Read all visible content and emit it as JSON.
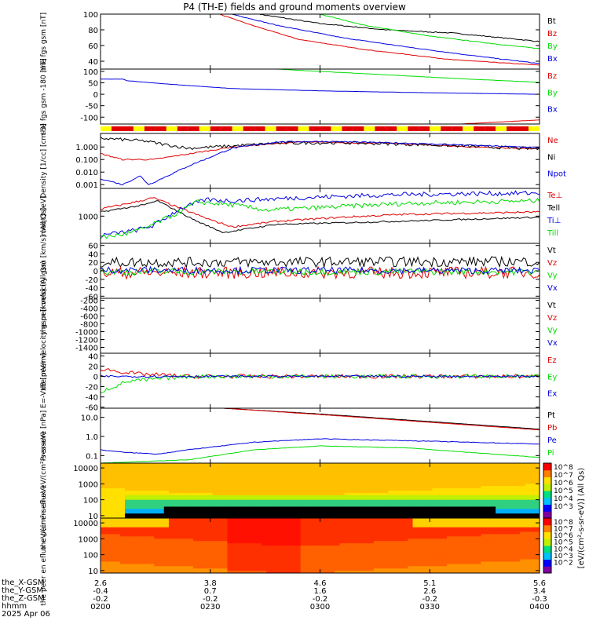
{
  "title": "P4 (TH-E) fields and ground moments overview",
  "colors": {
    "black": "#000000",
    "red": "#e00000",
    "green": "#00dd00",
    "blue": "#0000e0",
    "yellow": "#ffff00"
  },
  "x_axis": {
    "ticks": [
      "0200",
      "0230",
      "0300",
      "0330",
      "0400"
    ],
    "rows": [
      {
        "label": "the_X-GSM",
        "values": [
          "2.6",
          "3.8",
          "4.6",
          "5.1",
          "5.6"
        ]
      },
      {
        "label": "the_Y-GSM",
        "values": [
          "-0.4",
          "0.7",
          "1.6",
          "2.6",
          "3.4"
        ]
      },
      {
        "label": "the_Z-GSM",
        "values": [
          "-0.2",
          "-0.2",
          "-0.2",
          "-0.2",
          "-0.3"
        ]
      },
      {
        "label": "hhmm",
        "values": [
          "0200",
          "0230",
          "0300",
          "0330",
          "0400"
        ]
      }
    ],
    "date": "2025 Apr 06"
  },
  "colorbar_label": "[eV/(cm²-s-sr-eV)] (All Qs)",
  "chart_data": [
    {
      "type": "line",
      "ylabel": "the fgs gsm [nT]",
      "ylim": [
        30,
        100
      ],
      "ticks": [
        "100",
        "80",
        "60",
        "40"
      ],
      "tick_values": [
        100,
        80,
        60,
        40
      ],
      "series": [
        {
          "name": "Bt",
          "color": "#000000",
          "points": [
            [
              0.36,
              100
            ],
            [
              0.5,
              88
            ],
            [
              0.65,
              80
            ],
            [
              0.8,
              76
            ],
            [
              0.95,
              68
            ],
            [
              1.0,
              65
            ]
          ],
          "noise": 0.6
        },
        {
          "name": "Bz",
          "color": "#e00000",
          "points": [
            [
              0.27,
              100
            ],
            [
              0.35,
              85
            ],
            [
              0.45,
              68
            ],
            [
              0.6,
              55
            ],
            [
              0.8,
              42
            ],
            [
              1.0,
              35
            ]
          ],
          "noise": 0.3
        },
        {
          "name": "By",
          "color": "#00dd00",
          "points": [
            [
              0.5,
              100
            ],
            [
              0.6,
              86
            ],
            [
              0.75,
              72
            ],
            [
              0.9,
              62
            ],
            [
              1.0,
              56
            ]
          ],
          "noise": 0.4
        },
        {
          "name": "Bx",
          "color": "#0000e0",
          "points": [
            [
              0.3,
              100
            ],
            [
              0.4,
              86
            ],
            [
              0.55,
              70
            ],
            [
              0.7,
              58
            ],
            [
              0.85,
              47
            ],
            [
              1.0,
              37
            ]
          ],
          "noise": 0.4
        }
      ]
    },
    {
      "type": "line",
      "ylabel": "the fgs gsm -180 [nT]",
      "ylim": [
        -130,
        110
      ],
      "ticks": [
        "100",
        "50",
        "0",
        "-50",
        "-100"
      ],
      "tick_values": [
        100,
        50,
        0,
        -50,
        -100
      ],
      "series": [
        {
          "name": "Bz",
          "color": "#e00000",
          "points": [
            [
              0.82,
              -130
            ],
            [
              0.9,
              -122
            ],
            [
              1.0,
              -112
            ]
          ],
          "noise": 0.5
        },
        {
          "name": "By",
          "color": "#00dd00",
          "points": [
            [
              0.4,
              110
            ],
            [
              0.6,
              90
            ],
            [
              0.8,
              70
            ],
            [
              1.0,
              52
            ]
          ],
          "noise": 0.5
        },
        {
          "name": "Bx",
          "color": "#0000e0",
          "points": [
            [
              0.0,
              66
            ],
            [
              0.05,
              66
            ],
            [
              0.05,
              108
            ],
            [
              0.055,
              60
            ],
            [
              0.15,
              45
            ],
            [
              0.3,
              25
            ],
            [
              0.5,
              15
            ],
            [
              0.7,
              8
            ],
            [
              1.0,
              0
            ]
          ],
          "noise": 0.3
        }
      ]
    },
    {
      "type": "line",
      "ylabel": "Density [1/cc] [cm-3]",
      "ylim": [
        0.0005,
        12
      ],
      "log": true,
      "ticks": [
        "1.000",
        "0.100",
        "0.010",
        "0.001"
      ],
      "tick_values": [
        1,
        0.1,
        0.01,
        0.001
      ],
      "series": [
        {
          "name": "Ne",
          "color": "#e00000",
          "points": [
            [
              0.0,
              0.3
            ],
            [
              0.05,
              0.1
            ],
            [
              0.12,
              0.1
            ],
            [
              0.3,
              1.0
            ],
            [
              0.45,
              2.5
            ],
            [
              0.65,
              2.0
            ],
            [
              0.85,
              1.0
            ],
            [
              1.0,
              0.7
            ]
          ],
          "noise": 0.1
        },
        {
          "name": "Ni",
          "color": "#000000",
          "points": [
            [
              0.0,
              5
            ],
            [
              0.1,
              3
            ],
            [
              0.15,
              1.5
            ],
            [
              0.2,
              0.8
            ],
            [
              0.3,
              1.2
            ],
            [
              0.4,
              2.0
            ],
            [
              0.55,
              2.2
            ],
            [
              0.75,
              1.5
            ],
            [
              1.0,
              0.7
            ]
          ],
          "noise": 0.25
        },
        {
          "name": "Npot",
          "color": "#0000e0",
          "points": [
            [
              0.0,
              0.003
            ],
            [
              0.05,
              0.001
            ],
            [
              0.09,
              0.005
            ],
            [
              0.11,
              0.001
            ],
            [
              0.2,
              0.03
            ],
            [
              0.3,
              0.8
            ],
            [
              0.4,
              2.5
            ],
            [
              0.5,
              2.8
            ],
            [
              0.7,
              2.0
            ],
            [
              1.0,
              0.9
            ]
          ],
          "noise": 0.1
        }
      ]
    },
    {
      "type": "line",
      "ylabel": "moqt3 [eV]",
      "ylim": [
        70,
        15000
      ],
      "log": true,
      "ticks": [
        "1000"
      ],
      "tick_values": [
        1000
      ],
      "series": [
        {
          "name": "Te⊥",
          "color": "#e00000",
          "points": [
            [
              0.0,
              2000
            ],
            [
              0.08,
              4000
            ],
            [
              0.12,
              6000
            ],
            [
              0.25,
              700
            ],
            [
              0.3,
              350
            ],
            [
              0.4,
              600
            ],
            [
              0.55,
              900
            ],
            [
              0.7,
              1200
            ],
            [
              1.0,
              1500
            ]
          ],
          "noise": 0.08
        },
        {
          "name": "Tell",
          "color": "#000000",
          "points": [
            [
              0.0,
              1500
            ],
            [
              0.1,
              3000
            ],
            [
              0.13,
              4500
            ],
            [
              0.22,
              600
            ],
            [
              0.28,
              200
            ],
            [
              0.4,
              450
            ],
            [
              0.6,
              550
            ],
            [
              0.8,
              700
            ],
            [
              1.0,
              900
            ]
          ],
          "noise": 0.06
        },
        {
          "name": "Ti⊥",
          "color": "#0000e0",
          "points": [
            [
              0.0,
              150
            ],
            [
              0.08,
              250
            ],
            [
              0.12,
              400
            ],
            [
              0.18,
              2000
            ],
            [
              0.24,
              5000
            ],
            [
              0.3,
              4500
            ],
            [
              0.45,
              6000
            ],
            [
              0.65,
              8000
            ],
            [
              0.85,
              9000
            ],
            [
              1.0,
              9500
            ]
          ],
          "noise": 0.2
        },
        {
          "name": "Till",
          "color": "#00dd00",
          "points": [
            [
              0.0,
              120
            ],
            [
              0.06,
              180
            ],
            [
              0.1,
              300
            ],
            [
              0.17,
              1200
            ],
            [
              0.22,
              4000
            ],
            [
              0.3,
              3000
            ],
            [
              0.38,
              1800
            ],
            [
              0.5,
              2300
            ],
            [
              0.7,
              3500
            ],
            [
              1.0,
              4500
            ]
          ],
          "noise": 0.2
        }
      ]
    },
    {
      "type": "line",
      "ylabel": "the peir velocity gsm [km/s] (All Qs)",
      "ylim": [
        -65,
        65
      ],
      "ticks": [
        "60",
        "40",
        "20",
        "0",
        "-20",
        "-40",
        "-60"
      ],
      "tick_values": [
        60,
        40,
        20,
        0,
        -20,
        -40,
        -60
      ],
      "series": [
        {
          "name": "Vt",
          "color": "#000000",
          "points": [
            [
              0.0,
              20
            ],
            [
              1.0,
              22
            ]
          ],
          "noise": 12
        },
        {
          "name": "Vz",
          "color": "#e00000",
          "points": [
            [
              0.0,
              -5
            ],
            [
              1.0,
              -4
            ]
          ],
          "noise": 14
        },
        {
          "name": "Vy",
          "color": "#00dd00",
          "points": [
            [
              0.0,
              -2
            ],
            [
              1.0,
              -2
            ]
          ],
          "noise": 8
        },
        {
          "name": "Vx",
          "color": "#0000e0",
          "points": [
            [
              0.0,
              2
            ],
            [
              1.0,
              0
            ]
          ],
          "noise": 8
        }
      ]
    },
    {
      "type": "line",
      "ylabel": "the peer velocity gsm [km/s] (All Qs)",
      "ylim": [
        -1550,
        -150
      ],
      "ticks": [
        "-200",
        "-400",
        "-600",
        "-800",
        "-1000",
        "-1200",
        "-1400"
      ],
      "tick_values": [
        -200,
        -400,
        -600,
        -800,
        -1000,
        -1200,
        -1400
      ],
      "series": [
        {
          "name": "Vt",
          "color": "#000000",
          "points": [],
          "noise": 0
        },
        {
          "name": "Vz",
          "color": "#e00000",
          "points": [],
          "noise": 0
        },
        {
          "name": "Vy",
          "color": "#00dd00",
          "points": [],
          "noise": 0
        },
        {
          "name": "Vx",
          "color": "#0000e0",
          "points": [],
          "noise": 0
        }
      ]
    },
    {
      "type": "line",
      "ylabel": "E=-VxB [mV/m]",
      "ylim": [
        -62,
        45
      ],
      "ticks": [
        "40",
        "20",
        "0",
        "-20",
        "-40",
        "-60"
      ],
      "tick_values": [
        40,
        20,
        0,
        -20,
        -40,
        -60
      ],
      "series": [
        {
          "name": "Ez",
          "color": "#e00000",
          "points": [
            [
              0.0,
              15
            ],
            [
              0.08,
              5
            ],
            [
              0.2,
              0
            ],
            [
              1.0,
              0
            ]
          ],
          "noise": 4
        },
        {
          "name": "Ey",
          "color": "#00dd00",
          "points": [
            [
              0.0,
              -30
            ],
            [
              0.06,
              -10
            ],
            [
              0.2,
              0
            ],
            [
              1.0,
              0
            ]
          ],
          "noise": 4
        },
        {
          "name": "Ex",
          "color": "#0000e0",
          "points": [
            [
              0.0,
              0
            ],
            [
              0.2,
              0
            ],
            [
              1.0,
              0
            ]
          ],
          "noise": 2
        }
      ]
    },
    {
      "type": "line",
      "ylabel": "Pressure [nPa]",
      "ylim": [
        0.04,
        30
      ],
      "log": true,
      "ticks": [
        "10.0",
        "1.0",
        "0.1"
      ],
      "tick_values": [
        10,
        1,
        0.1
      ],
      "series": [
        {
          "name": "Pt",
          "color": "#000000",
          "points": [
            [
              0.28,
              30
            ],
            [
              0.5,
              15
            ],
            [
              0.75,
              6
            ],
            [
              1.0,
              2.4
            ]
          ],
          "noise": 0.01
        },
        {
          "name": "Pb",
          "color": "#e00000",
          "points": [
            [
              0.28,
              30
            ],
            [
              0.5,
              14
            ],
            [
              0.75,
              5.5
            ],
            [
              1.0,
              2.2
            ]
          ],
          "noise": 0.01
        },
        {
          "name": "Pe",
          "color": "#0000e0",
          "points": [
            [
              0.0,
              0.2
            ],
            [
              0.05,
              0.15
            ],
            [
              0.13,
              0.12
            ],
            [
              0.2,
              0.2
            ],
            [
              0.35,
              0.5
            ],
            [
              0.5,
              0.75
            ],
            [
              0.7,
              0.6
            ],
            [
              1.0,
              0.4
            ]
          ],
          "noise": 0.03
        },
        {
          "name": "Pi",
          "color": "#00dd00",
          "points": [
            [
              0.0,
              0.04
            ],
            [
              0.2,
              0.06
            ],
            [
              0.35,
              0.2
            ],
            [
              0.5,
              0.32
            ],
            [
              0.7,
              0.25
            ],
            [
              1.0,
              0.08
            ]
          ],
          "noise": 0.02
        }
      ]
    },
    {
      "type": "heatmap",
      "ylabel": "the peir en eflux eV/(cm²-s-sr-eV)",
      "ylim": [
        7,
        20000
      ],
      "log": true,
      "ticks": [
        "10000",
        "1000",
        "100",
        "10"
      ],
      "tick_values": [
        10000,
        1000,
        100,
        10
      ],
      "colorbar": {
        "labels": [
          "10^8",
          "10^7",
          "10^6",
          "10^5",
          "10^4",
          "10^3"
        ]
      }
    },
    {
      "type": "heatmap",
      "ylabel": "the peer en eflux eV/(cm²-s-sr-eV)",
      "ylim": [
        7,
        20000
      ],
      "log": true,
      "ticks": [
        "10000",
        "1000",
        "100",
        "10"
      ],
      "tick_values": [
        10000,
        1000,
        100,
        10
      ],
      "colorbar": {
        "labels": [
          "10^8",
          "10^7",
          "10^6",
          "10^5",
          "10^4",
          "10^3",
          "10^2"
        ]
      }
    }
  ]
}
